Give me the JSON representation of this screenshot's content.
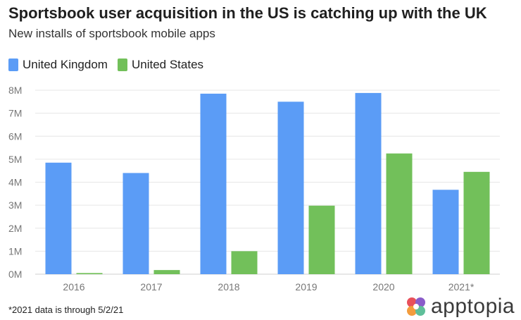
{
  "header": {
    "title": "Sportsbook user acquisition in the US is catching up with the UK",
    "subtitle": "New installs of sportsbook mobile apps"
  },
  "footnote": "*2021 data is through 5/2/21",
  "brand": {
    "name": "apptopia",
    "icon": "apptopia-logo-icon"
  },
  "colors": {
    "uk": "#5b9cf6",
    "us": "#72c05a",
    "grid": "#e6e6e6",
    "axis_text": "#777777"
  },
  "chart_data": {
    "type": "bar",
    "title": "Sportsbook user acquisition in the US is catching up with the UK",
    "subtitle": "New installs of sportsbook mobile apps",
    "categories": [
      "2016",
      "2017",
      "2018",
      "2019",
      "2020",
      "2021*"
    ],
    "series": [
      {
        "name": "United Kingdom",
        "color": "#5b9cf6",
        "values": [
          4.85,
          4.4,
          7.85,
          7.5,
          7.88,
          3.67
        ]
      },
      {
        "name": "United States",
        "color": "#72c05a",
        "values": [
          0.05,
          0.18,
          1.0,
          2.98,
          5.25,
          4.45
        ]
      }
    ],
    "value_unit": "M",
    "ylim": [
      0,
      8
    ],
    "yticks": [
      "0M",
      "1M",
      "2M",
      "3M",
      "4M",
      "5M",
      "6M",
      "7M",
      "8M"
    ],
    "grid": true,
    "legend": "top-left",
    "xlabel": "",
    "ylabel": ""
  }
}
